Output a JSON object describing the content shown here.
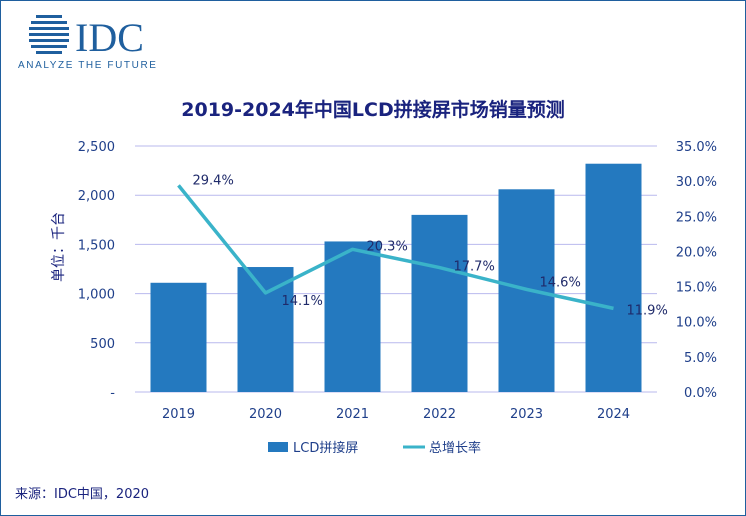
{
  "logo": {
    "text": "IDC",
    "tagline": "ANALYZE THE FUTURE"
  },
  "source": "来源：IDC中国，2020",
  "colors": {
    "bar": "#2479bf",
    "line": "#3ab3c9",
    "text_dark": "#1a237e",
    "axis_text": "#1f3f8a",
    "grid": "#b9b9ee"
  },
  "chart_data": {
    "type": "bar",
    "title": "2019-2024年中国LCD拼接屏市场销量预测",
    "ylabel": "单位：千台",
    "categories": [
      "2019",
      "2020",
      "2021",
      "2022",
      "2023",
      "2024"
    ],
    "series": [
      {
        "name": "LCD拼接屏",
        "type": "bar",
        "axis": "left",
        "values": [
          1110,
          1270,
          1530,
          1800,
          2060,
          2320
        ]
      },
      {
        "name": "总增长率",
        "type": "line",
        "axis": "right",
        "values": [
          29.4,
          14.1,
          20.3,
          17.7,
          14.6,
          11.9
        ],
        "labels": [
          "29.4%",
          "14.1%",
          "20.3%",
          "17.7%",
          "14.6%",
          "11.9%"
        ]
      }
    ],
    "ylim": [
      0,
      2500
    ],
    "y_ticks": [
      "-",
      "500",
      "1,000",
      "1,500",
      "2,000",
      "2,500"
    ],
    "y2lim": [
      0,
      35
    ],
    "y2_ticks": [
      "0.0%",
      "5.0%",
      "10.0%",
      "15.0%",
      "20.0%",
      "25.0%",
      "30.0%",
      "35.0%"
    ],
    "grid": true,
    "legend_position": "bottom"
  }
}
